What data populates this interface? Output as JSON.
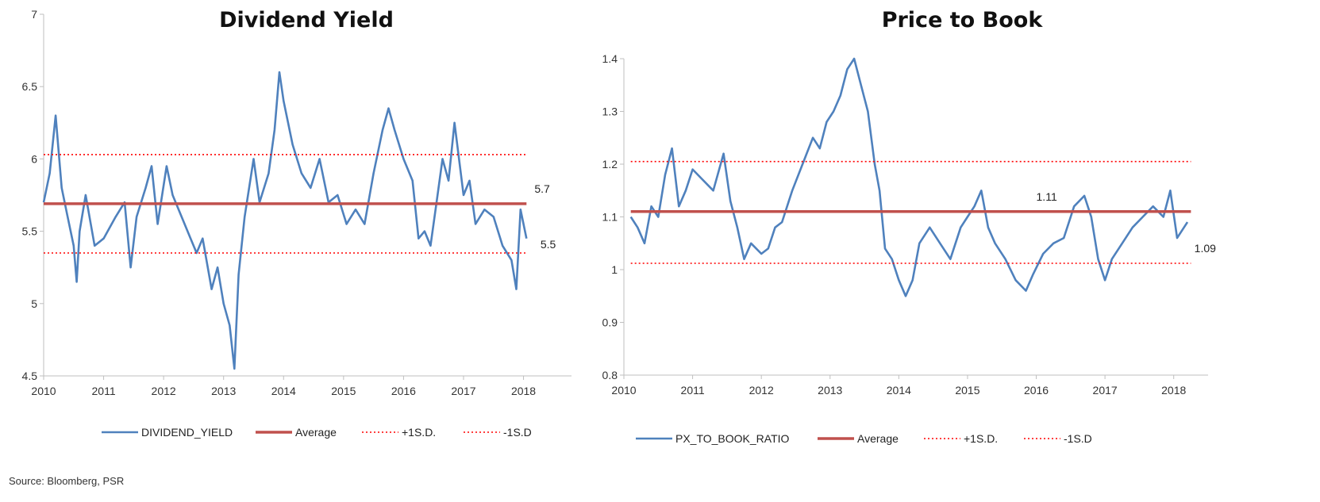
{
  "source": "Source: Bloomberg, PSR",
  "colors": {
    "series": "#4f81bd",
    "average": "#c0504d",
    "sd": "#ff0000",
    "axis": "#bfbfbf"
  },
  "chart_data": [
    {
      "type": "line",
      "title": "Dividend Yield",
      "xlabel": "",
      "ylabel": "",
      "xlim": [
        2010,
        2018.8
      ],
      "ylim": [
        4.5,
        7
      ],
      "x_ticks": [
        "2010",
        "2011",
        "2012",
        "2013",
        "2014",
        "2015",
        "2016",
        "2017",
        "2018"
      ],
      "y_ticks": [
        "4.5",
        "5",
        "5.5",
        "6",
        "6.5",
        "7"
      ],
      "legend": "bottom",
      "grid": false,
      "series": [
        {
          "name": "DIVIDEND_YIELD",
          "style": "solid",
          "x": [
            2010.0,
            2010.1,
            2010.2,
            2010.3,
            2010.4,
            2010.5,
            2010.55,
            2010.6,
            2010.7,
            2010.85,
            2011.0,
            2011.2,
            2011.35,
            2011.45,
            2011.55,
            2011.7,
            2011.8,
            2011.9,
            2012.05,
            2012.15,
            2012.3,
            2012.45,
            2012.55,
            2012.65,
            2012.8,
            2012.9,
            2013.0,
            2013.1,
            2013.18,
            2013.25,
            2013.35,
            2013.5,
            2013.6,
            2013.75,
            2013.85,
            2013.93,
            2014.0,
            2014.15,
            2014.3,
            2014.45,
            2014.6,
            2014.75,
            2014.9,
            2015.05,
            2015.2,
            2015.35,
            2015.5,
            2015.65,
            2015.75,
            2015.85,
            2016.0,
            2016.15,
            2016.25,
            2016.35,
            2016.45,
            2016.55,
            2016.65,
            2016.75,
            2016.85,
            2017.0,
            2017.1,
            2017.2,
            2017.35,
            2017.5,
            2017.65,
            2017.8,
            2017.88,
            2017.95,
            2018.05
          ],
          "y": [
            5.7,
            5.9,
            6.3,
            5.8,
            5.6,
            5.4,
            5.15,
            5.5,
            5.75,
            5.4,
            5.45,
            5.6,
            5.7,
            5.25,
            5.6,
            5.8,
            5.95,
            5.55,
            5.95,
            5.75,
            5.6,
            5.45,
            5.35,
            5.45,
            5.1,
            5.25,
            5.0,
            4.85,
            4.55,
            5.2,
            5.6,
            6.0,
            5.7,
            5.9,
            6.2,
            6.6,
            6.4,
            6.1,
            5.9,
            5.8,
            6.0,
            5.7,
            5.75,
            5.55,
            5.65,
            5.55,
            5.9,
            6.2,
            6.35,
            6.2,
            6.0,
            5.85,
            5.45,
            5.5,
            5.4,
            5.7,
            6.0,
            5.85,
            6.25,
            5.75,
            5.85,
            5.55,
            5.65,
            5.6,
            5.4,
            5.3,
            5.1,
            5.65,
            5.45
          ]
        },
        {
          "name": "Average",
          "style": "thick",
          "x": [
            2010.0,
            2018.05
          ],
          "y": [
            5.69,
            5.69
          ]
        },
        {
          "name": "+1S.D.",
          "style": "dotted",
          "x": [
            2010.0,
            2018.05
          ],
          "y": [
            6.03,
            6.03
          ]
        },
        {
          "name": "-1S.D",
          "style": "dotted",
          "x": [
            2010.0,
            2018.05
          ],
          "y": [
            5.35,
            5.35
          ]
        }
      ],
      "annotations": [
        {
          "text": "5.7",
          "x": 2018.05,
          "y": 5.69
        },
        {
          "text": "5.5",
          "x": 2018.15,
          "y": 5.47
        }
      ]
    },
    {
      "type": "line",
      "title": "Price to Book",
      "xlabel": "",
      "ylabel": "",
      "xlim": [
        2010,
        2018.5
      ],
      "ylim": [
        0.8,
        1.4
      ],
      "x_ticks": [
        "2010",
        "2011",
        "2012",
        "2013",
        "2014",
        "2015",
        "2016",
        "2017",
        "2018"
      ],
      "y_ticks": [
        "0.8",
        "0.9",
        "1",
        "1.1",
        "1.2",
        "1.3",
        "1.4"
      ],
      "legend": "bottom",
      "grid": false,
      "series": [
        {
          "name": "PX_TO_BOOK_RATIO",
          "style": "solid",
          "x": [
            2010.1,
            2010.2,
            2010.3,
            2010.4,
            2010.5,
            2010.6,
            2010.7,
            2010.8,
            2010.9,
            2011.0,
            2011.15,
            2011.3,
            2011.45,
            2011.55,
            2011.65,
            2011.75,
            2011.85,
            2012.0,
            2012.1,
            2012.2,
            2012.3,
            2012.45,
            2012.6,
            2012.75,
            2012.85,
            2012.95,
            2013.05,
            2013.15,
            2013.25,
            2013.35,
            2013.45,
            2013.55,
            2013.65,
            2013.72,
            2013.8,
            2013.9,
            2014.0,
            2014.1,
            2014.2,
            2014.3,
            2014.45,
            2014.6,
            2014.75,
            2014.9,
            2015.0,
            2015.1,
            2015.2,
            2015.3,
            2015.4,
            2015.55,
            2015.7,
            2015.85,
            2015.95,
            2016.1,
            2016.25,
            2016.4,
            2016.55,
            2016.7,
            2016.8,
            2016.9,
            2017.0,
            2017.1,
            2017.25,
            2017.4,
            2017.55,
            2017.7,
            2017.85,
            2017.95,
            2018.05,
            2018.2
          ],
          "y": [
            1.1,
            1.08,
            1.05,
            1.12,
            1.1,
            1.18,
            1.23,
            1.12,
            1.15,
            1.19,
            1.17,
            1.15,
            1.22,
            1.13,
            1.08,
            1.02,
            1.05,
            1.03,
            1.04,
            1.08,
            1.09,
            1.15,
            1.2,
            1.25,
            1.23,
            1.28,
            1.3,
            1.33,
            1.38,
            1.4,
            1.35,
            1.3,
            1.2,
            1.15,
            1.04,
            1.02,
            0.98,
            0.95,
            0.98,
            1.05,
            1.08,
            1.05,
            1.02,
            1.08,
            1.1,
            1.12,
            1.15,
            1.08,
            1.05,
            1.02,
            0.98,
            0.96,
            0.99,
            1.03,
            1.05,
            1.06,
            1.12,
            1.14,
            1.1,
            1.02,
            0.98,
            1.02,
            1.05,
            1.08,
            1.1,
            1.12,
            1.1,
            1.15,
            1.06,
            1.09
          ]
        },
        {
          "name": "Average",
          "style": "thick",
          "x": [
            2010.1,
            2018.25
          ],
          "y": [
            1.11,
            1.11
          ]
        },
        {
          "name": "+1S.D.",
          "style": "dotted",
          "x": [
            2010.1,
            2018.25
          ],
          "y": [
            1.205,
            1.205
          ]
        },
        {
          "name": "-1S.D",
          "style": "dotted",
          "x": [
            2010.1,
            2018.25
          ],
          "y": [
            1.012,
            1.012
          ]
        }
      ],
      "annotations": [
        {
          "text": "1.11",
          "x": 2016.0,
          "y": 1.11
        },
        {
          "text": "1.09",
          "x": 2018.3,
          "y": 1.09
        }
      ]
    }
  ]
}
